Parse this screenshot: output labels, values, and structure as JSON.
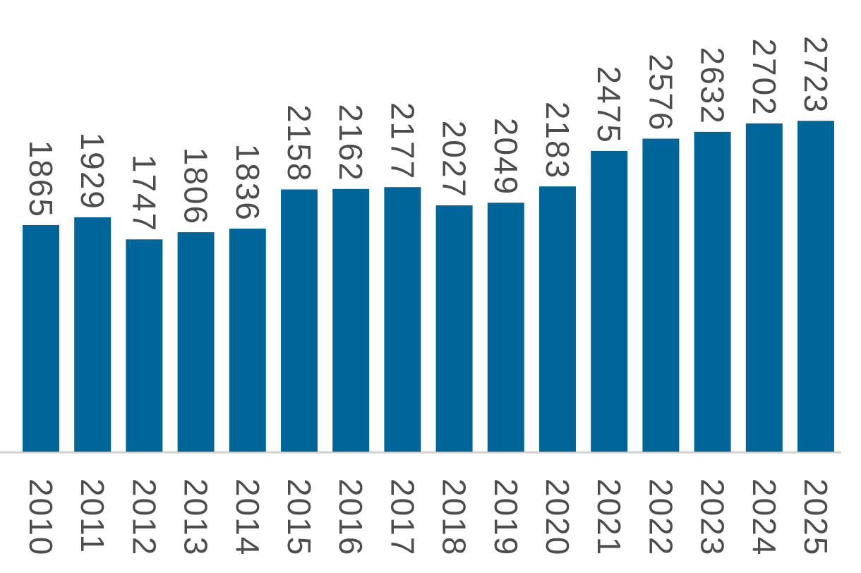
{
  "chart_data": {
    "type": "bar",
    "categories": [
      "2010",
      "2011",
      "2012",
      "2013",
      "2014",
      "2015",
      "2016",
      "2017",
      "2018",
      "2019",
      "2020",
      "2021",
      "2022",
      "2023",
      "2024",
      "2025"
    ],
    "values": [
      1865,
      1929,
      1747,
      1806,
      1836,
      2158,
      2162,
      2177,
      2027,
      2049,
      2183,
      2475,
      2576,
      2632,
      2702,
      2723
    ],
    "color": "#006699",
    "ylim": [
      0,
      3700
    ]
  }
}
